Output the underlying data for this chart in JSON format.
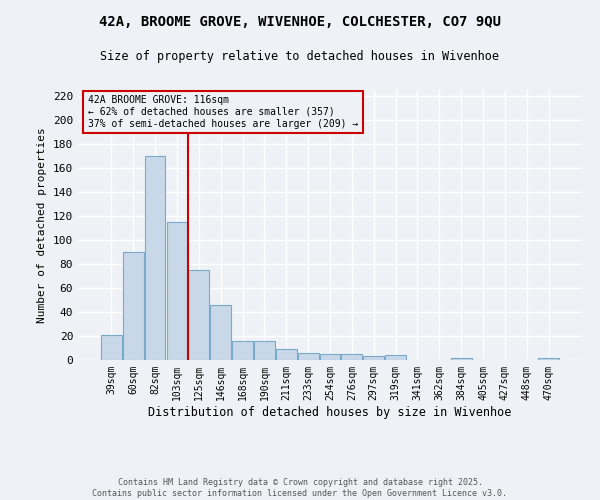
{
  "title_line1": "42A, BROOME GROVE, WIVENHOE, COLCHESTER, CO7 9QU",
  "title_line2": "Size of property relative to detached houses in Wivenhoe",
  "xlabel": "Distribution of detached houses by size in Wivenhoe",
  "ylabel": "Number of detached properties",
  "categories": [
    "39sqm",
    "60sqm",
    "82sqm",
    "103sqm",
    "125sqm",
    "146sqm",
    "168sqm",
    "190sqm",
    "211sqm",
    "233sqm",
    "254sqm",
    "276sqm",
    "297sqm",
    "319sqm",
    "341sqm",
    "362sqm",
    "384sqm",
    "405sqm",
    "427sqm",
    "448sqm",
    "470sqm"
  ],
  "values": [
    21,
    90,
    170,
    115,
    75,
    46,
    16,
    16,
    9,
    6,
    5,
    5,
    3,
    4,
    0,
    0,
    2,
    0,
    0,
    0,
    2
  ],
  "bar_color": "#c8d8e8",
  "bar_edge_color": "#7aaaca",
  "property_bin_index": 3,
  "annotation_title": "42A BROOME GROVE: 116sqm",
  "annotation_line2": "← 62% of detached houses are smaller (357)",
  "annotation_line3": "37% of semi-detached houses are larger (209) →",
  "vline_color": "#cc0000",
  "annotation_box_color": "#cc0000",
  "ylim": [
    0,
    225
  ],
  "yticks": [
    0,
    20,
    40,
    60,
    80,
    100,
    120,
    140,
    160,
    180,
    200,
    220
  ],
  "footer_line1": "Contains HM Land Registry data © Crown copyright and database right 2025.",
  "footer_line2": "Contains public sector information licensed under the Open Government Licence v3.0.",
  "background_color": "#eef2f6",
  "grid_color": "#ffffff"
}
